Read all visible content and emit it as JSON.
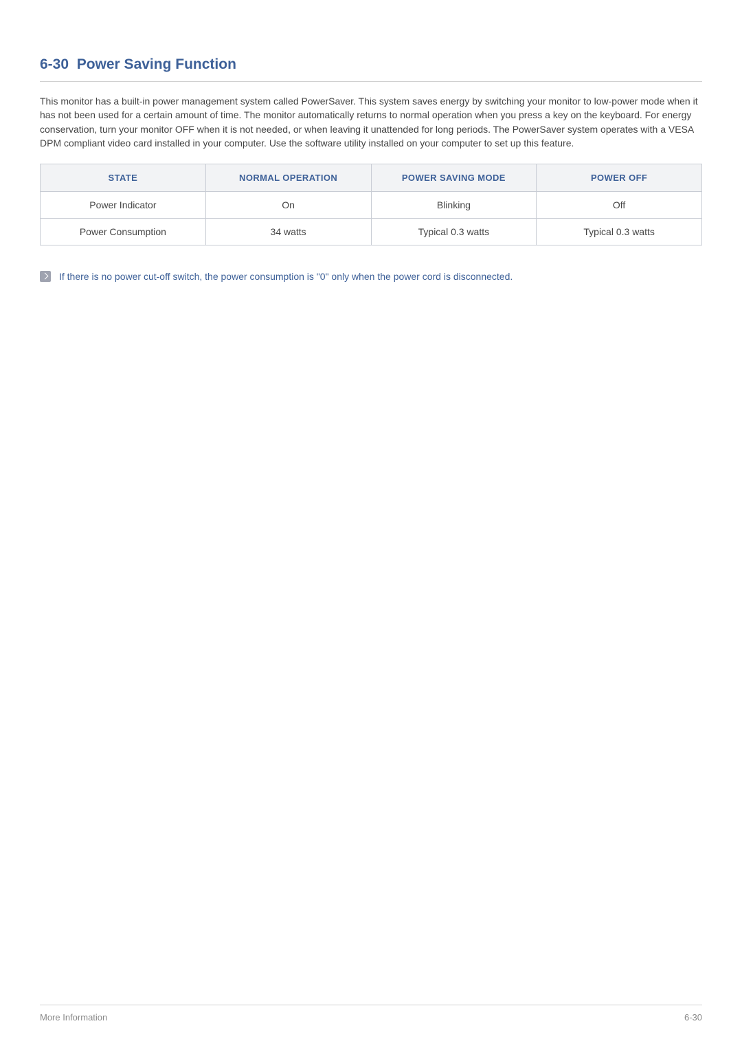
{
  "heading": {
    "number": "6-30",
    "title": "Power Saving Function"
  },
  "paragraph": "This monitor has a built-in power management system called PowerSaver. This system saves energy by switching your monitor to low-power mode when it has not been used for a certain amount of time. The monitor automatically returns to normal operation when you press a key on the keyboard. For energy conservation, turn your monitor OFF when it is not needed, or when leaving it unattended for long periods. The PowerSaver system operates with a VESA DPM compliant video card installed in your computer. Use the software utility installed on your computer to set up this feature.",
  "table": {
    "headers": [
      "STATE",
      "NORMAL OPERATION",
      "POWER SAVING MODE",
      "POWER OFF"
    ],
    "rows": [
      [
        "Power Indicator",
        "On",
        "Blinking",
        "Off"
      ],
      [
        "Power Consumption",
        "34 watts",
        "Typical 0.3 watts",
        "Typical 0.3 watts"
      ]
    ]
  },
  "note": "If there is no power cut-off switch, the power consumption is \"0\" only when the power cord is disconnected.",
  "footer": {
    "left": "More Information",
    "right": "6-30"
  },
  "colors": {
    "heading": "#3d6098",
    "body_text": "#444444",
    "table_header_bg": "#f2f3f5",
    "table_border": "#c8ccd4",
    "note_text": "#3d6098",
    "note_icon_bg": "#9fa3b0",
    "footer_text": "#888888",
    "divider": "#d0d0d0"
  },
  "typography": {
    "heading_fontsize": 21,
    "body_fontsize": 14,
    "table_header_fontsize": 13,
    "table_cell_fontsize": 14,
    "note_fontsize": 14,
    "footer_fontsize": 13
  }
}
